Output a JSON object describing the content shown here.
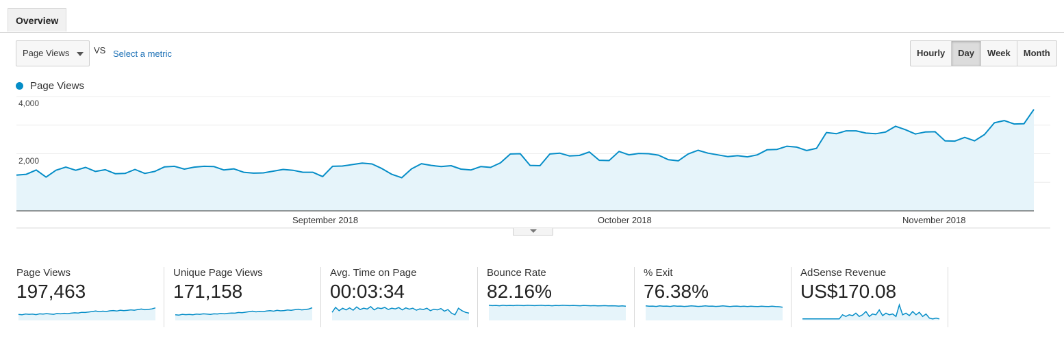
{
  "tabs": {
    "overview": "Overview"
  },
  "controls": {
    "metric_select": "Page Views",
    "vs": "VS",
    "select_metric_link": "Select a metric",
    "granularity": [
      "Hourly",
      "Day",
      "Week",
      "Month"
    ],
    "granularity_active": "Day"
  },
  "colors": {
    "line": "#058dc7",
    "fill": "#e6f4fa"
  },
  "chart_data": {
    "type": "area",
    "series": [
      {
        "name": "Page Views",
        "values": [
          1250,
          1280,
          1430,
          1180,
          1420,
          1530,
          1420,
          1520,
          1380,
          1440,
          1300,
          1310,
          1450,
          1310,
          1380,
          1540,
          1560,
          1460,
          1530,
          1560,
          1550,
          1430,
          1470,
          1350,
          1320,
          1330,
          1390,
          1450,
          1420,
          1350,
          1350,
          1200,
          1560,
          1570,
          1620,
          1670,
          1640,
          1480,
          1280,
          1160,
          1470,
          1650,
          1590,
          1550,
          1580,
          1460,
          1430,
          1550,
          1520,
          1680,
          1990,
          2000,
          1590,
          1580,
          1990,
          2020,
          1920,
          1940,
          2060,
          1770,
          1760,
          2080,
          1960,
          2010,
          2000,
          1950,
          1790,
          1750,
          1990,
          2120,
          2020,
          1960,
          1900,
          1930,
          1890,
          1960,
          2140,
          2150,
          2260,
          2230,
          2110,
          2190,
          2740,
          2700,
          2800,
          2800,
          2720,
          2700,
          2760,
          2960,
          2840,
          2690,
          2760,
          2770,
          2450,
          2440,
          2570,
          2450,
          2670,
          3080,
          3160,
          3040,
          3050,
          3550
        ]
      }
    ],
    "ylabels": [
      "4,000",
      "2,000"
    ],
    "ylim": [
      0,
      4000
    ],
    "x_month_labels": [
      "September 2018",
      "October 2018",
      "November 2018"
    ]
  },
  "scorecards": [
    {
      "label": "Page Views",
      "value": "197,463",
      "spark": [
        0.32,
        0.3,
        0.35,
        0.33,
        0.34,
        0.31,
        0.36,
        0.34,
        0.37,
        0.35,
        0.33,
        0.38,
        0.36,
        0.39,
        0.37,
        0.4,
        0.42,
        0.41,
        0.45,
        0.44,
        0.47,
        0.5,
        0.53,
        0.49,
        0.52,
        0.5,
        0.54,
        0.56,
        0.53,
        0.58,
        0.55,
        0.57,
        0.6,
        0.58,
        0.62,
        0.65,
        0.61,
        0.63,
        0.66,
        0.72
      ]
    },
    {
      "label": "Unique Page Views",
      "value": "171,158",
      "spark": [
        0.3,
        0.28,
        0.33,
        0.31,
        0.32,
        0.3,
        0.34,
        0.33,
        0.36,
        0.34,
        0.32,
        0.36,
        0.35,
        0.38,
        0.36,
        0.39,
        0.41,
        0.4,
        0.44,
        0.43,
        0.46,
        0.49,
        0.52,
        0.48,
        0.51,
        0.49,
        0.53,
        0.55,
        0.52,
        0.57,
        0.54,
        0.56,
        0.59,
        0.57,
        0.61,
        0.64,
        0.6,
        0.62,
        0.65,
        0.73
      ]
    },
    {
      "label": "Avg. Time on Page",
      "value": "00:03:34",
      "spark": [
        0.45,
        0.75,
        0.55,
        0.7,
        0.6,
        0.72,
        0.58,
        0.78,
        0.62,
        0.7,
        0.65,
        0.8,
        0.6,
        0.72,
        0.68,
        0.75,
        0.62,
        0.7,
        0.66,
        0.74,
        0.6,
        0.72,
        0.64,
        0.7,
        0.58,
        0.66,
        0.62,
        0.7,
        0.55,
        0.64,
        0.6,
        0.68,
        0.52,
        0.62,
        0.4,
        0.3,
        0.7,
        0.55,
        0.45,
        0.4
      ]
    },
    {
      "label": "Bounce Rate",
      "value": "82.16%",
      "spark": [
        0.88,
        0.86,
        0.87,
        0.85,
        0.88,
        0.86,
        0.87,
        0.86,
        0.88,
        0.87,
        0.86,
        0.88,
        0.87,
        0.86,
        0.87,
        0.88,
        0.86,
        0.87,
        0.85,
        0.87,
        0.86,
        0.88,
        0.87,
        0.86,
        0.87,
        0.86,
        0.85,
        0.87,
        0.86,
        0.85,
        0.86,
        0.84,
        0.85,
        0.86,
        0.84,
        0.85,
        0.84,
        0.83,
        0.84,
        0.82
      ]
    },
    {
      "label": "% Exit",
      "value": "76.38%",
      "spark": [
        0.84,
        0.82,
        0.83,
        0.81,
        0.84,
        0.82,
        0.83,
        0.81,
        0.84,
        0.82,
        0.83,
        0.81,
        0.82,
        0.84,
        0.83,
        0.81,
        0.82,
        0.84,
        0.82,
        0.83,
        0.81,
        0.82,
        0.84,
        0.82,
        0.8,
        0.82,
        0.83,
        0.81,
        0.82,
        0.8,
        0.82,
        0.81,
        0.8,
        0.82,
        0.81,
        0.8,
        0.82,
        0.8,
        0.79,
        0.76
      ]
    },
    {
      "label": "AdSense Revenue",
      "value": "US$170.08",
      "spark": [
        0.05,
        0.05,
        0.05,
        0.05,
        0.05,
        0.05,
        0.05,
        0.05,
        0.05,
        0.05,
        0.05,
        0.05,
        0.3,
        0.2,
        0.3,
        0.25,
        0.4,
        0.2,
        0.3,
        0.5,
        0.2,
        0.35,
        0.3,
        0.6,
        0.25,
        0.4,
        0.3,
        0.35,
        0.2,
        0.9,
        0.3,
        0.4,
        0.25,
        0.5,
        0.3,
        0.45,
        0.2,
        0.35,
        0.1,
        0.05,
        0.1,
        0.05
      ]
    }
  ]
}
